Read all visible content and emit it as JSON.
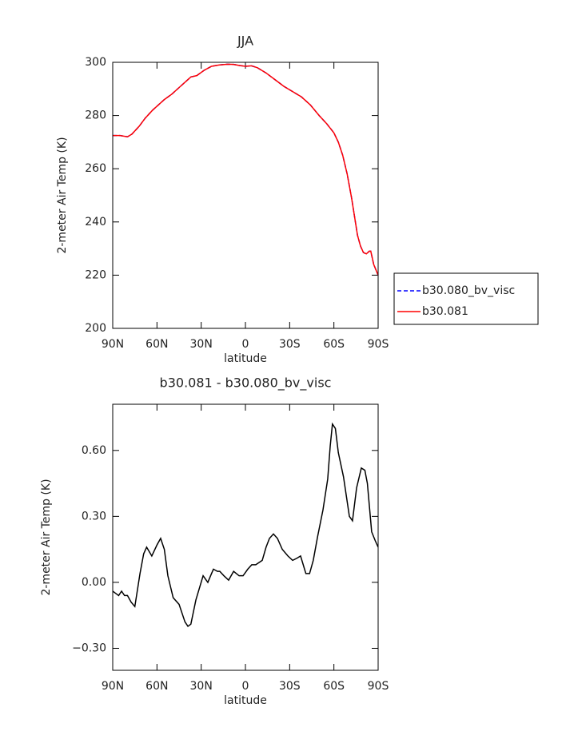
{
  "chart_data": [
    {
      "type": "line",
      "title": "JJA",
      "xlabel": "latitude",
      "ylabel": "2-meter Air Temp (K)",
      "x": [
        90,
        85,
        80,
        77,
        72,
        68,
        63,
        55,
        50,
        45,
        40,
        37,
        33,
        28,
        23,
        18,
        12,
        8,
        4,
        0,
        -4,
        -8,
        -14,
        -20,
        -26,
        -32,
        -38,
        -44,
        -50,
        -55,
        -60,
        -63,
        -66,
        -69,
        -72,
        -74,
        -76,
        -78,
        -80,
        -82,
        -84,
        -85,
        -87,
        -90
      ],
      "series": [
        {
          "name": "b30.080_bv_visc",
          "color": "#0000ff",
          "line_style": "dashed",
          "values": [
            272.5,
            272.5,
            272,
            273,
            276,
            279,
            282,
            286,
            288,
            290.5,
            293,
            294.5,
            295,
            297,
            298.5,
            299,
            299.3,
            299.2,
            298.8,
            298.5,
            298.7,
            298,
            296,
            293.5,
            291,
            289,
            287,
            284,
            280,
            277,
            273.5,
            270,
            265,
            258,
            249,
            242,
            235,
            231,
            228.5,
            228,
            229,
            229,
            224,
            220
          ]
        },
        {
          "name": "b30.081",
          "color": "#ff0000",
          "line_style": "solid",
          "values": [
            272.5,
            272.5,
            272,
            273,
            276,
            279,
            282,
            286,
            288,
            290.5,
            293,
            294.5,
            295,
            297,
            298.5,
            299,
            299.3,
            299.2,
            298.8,
            298.5,
            298.7,
            298,
            296,
            293.5,
            291,
            289,
            287,
            284,
            280,
            277,
            273.5,
            270,
            265,
            258,
            249,
            242,
            235,
            231,
            228.5,
            228,
            229,
            229,
            224,
            220
          ]
        }
      ],
      "xlim": [
        90,
        -90
      ],
      "xticks": [
        {
          "value": 90,
          "label": "90N"
        },
        {
          "value": 60,
          "label": "60N"
        },
        {
          "value": 30,
          "label": "30N"
        },
        0,
        {
          "value": -30,
          "label": "30S"
        },
        {
          "value": -60,
          "label": "60S"
        },
        {
          "value": -90,
          "label": "90S"
        }
      ],
      "ylim": [
        200,
        300
      ],
      "yticks": [
        200,
        220,
        240,
        260,
        280,
        300
      ],
      "legend": "right"
    },
    {
      "type": "line",
      "title": "b30.081 - b30.080_bv_visc",
      "xlabel": "latitude",
      "ylabel": "2-meter Air Temp (K)",
      "x": [
        90,
        88,
        86,
        84,
        82,
        80,
        77.5,
        75,
        71.5,
        69,
        67,
        63.5,
        60,
        57.5,
        55,
        52.6,
        49,
        45,
        41,
        39,
        37,
        33.6,
        28.7,
        25.5,
        23,
        21.7,
        19,
        17.4,
        14.6,
        11.4,
        8,
        4.3,
        1.6,
        -1.6,
        -4.3,
        -7,
        -11.4,
        -14,
        -16.3,
        -19,
        -21.7,
        -25,
        -28.8,
        -32,
        -35,
        -37.4,
        -41,
        -43.5,
        -46,
        -49,
        -52.6,
        -55.8,
        -57.5,
        -59,
        -61,
        -63,
        -66.5,
        -70.5,
        -72.6,
        -75.4,
        -78.6,
        -81,
        -82.7,
        -85.6,
        -88,
        -90
      ],
      "series": [
        {
          "name": "b30.081 - b30.080_bv_visc",
          "color": "#000000",
          "line_style": "solid",
          "values": [
            -0.04,
            -0.05,
            -0.06,
            -0.04,
            -0.06,
            -0.06,
            -0.09,
            -0.11,
            0.04,
            0.13,
            0.16,
            0.12,
            0.17,
            0.2,
            0.15,
            0.03,
            -0.07,
            -0.1,
            -0.18,
            -0.2,
            -0.19,
            -0.08,
            0.03,
            0.0,
            0.04,
            0.06,
            0.05,
            0.05,
            0.03,
            0.01,
            0.05,
            0.03,
            0.03,
            0.06,
            0.08,
            0.08,
            0.1,
            0.16,
            0.2,
            0.22,
            0.2,
            0.15,
            0.12,
            0.1,
            0.11,
            0.12,
            0.04,
            0.04,
            0.1,
            0.21,
            0.33,
            0.47,
            0.62,
            0.72,
            0.7,
            0.59,
            0.48,
            0.3,
            0.28,
            0.43,
            0.52,
            0.51,
            0.45,
            0.23,
            0.19,
            0.16
          ]
        }
      ],
      "xlim": [
        90,
        -90
      ],
      "xticks": [
        {
          "value": 90,
          "label": "90N"
        },
        {
          "value": 60,
          "label": "60N"
        },
        {
          "value": 30,
          "label": "30N"
        },
        0,
        {
          "value": -30,
          "label": "30S"
        },
        {
          "value": -60,
          "label": "60S"
        },
        {
          "value": -90,
          "label": "90S"
        }
      ],
      "ylim": [
        -0.4,
        0.81
      ],
      "yticks": [
        {
          "value": -0.3,
          "label": "−0.30"
        },
        {
          "value": 0,
          "label": "0.00"
        },
        {
          "value": 0.3,
          "label": "0.30"
        },
        {
          "value": 0.6,
          "label": "0.60"
        }
      ]
    }
  ]
}
